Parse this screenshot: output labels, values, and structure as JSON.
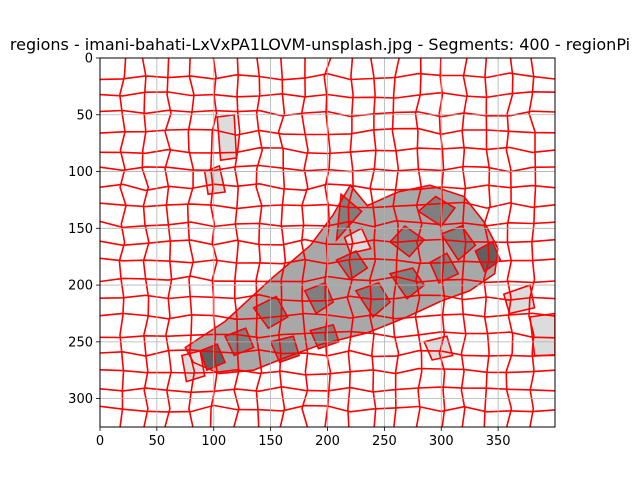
{
  "chart_data": {
    "type": "heatmap",
    "title": "regions - imani-bahati-LxVxPA1LOVM-unsplash.jpg - Segments: 400 - regionPi",
    "xlabel": "",
    "ylabel": "",
    "xlim": [
      0,
      400
    ],
    "ylim": [
      325,
      0
    ],
    "grid": true,
    "segments": 400,
    "boundary_color": "#ff0000",
    "x_ticks": [
      0,
      50,
      100,
      150,
      200,
      250,
      300,
      350
    ],
    "y_ticks": [
      0,
      50,
      100,
      150,
      200,
      250,
      300
    ],
    "colors": {
      "background": "#ffffff",
      "light_region": "#dcdcdc",
      "mid_region": "#a8a8a8",
      "dark_region": "#7f7f7f",
      "darkest_region": "#606060",
      "grid": "#b0b0b0",
      "axes": "#000000"
    },
    "shaded_regions": [
      {
        "shade": "mid",
        "outline": [
          [
            75,
            255
          ],
          [
            110,
            232
          ],
          [
            150,
            195
          ],
          [
            185,
            165
          ],
          [
            205,
            138
          ],
          [
            220,
            112
          ],
          [
            235,
            130
          ],
          [
            262,
            118
          ],
          [
            290,
            112
          ],
          [
            320,
            122
          ],
          [
            338,
            145
          ],
          [
            350,
            168
          ],
          [
            347,
            190
          ],
          [
            325,
            205
          ],
          [
            300,
            214
          ],
          [
            270,
            228
          ],
          [
            235,
            242
          ],
          [
            195,
            252
          ],
          [
            160,
            265
          ],
          [
            135,
            275
          ],
          [
            105,
            278
          ],
          [
            82,
            268
          ]
        ]
      },
      {
        "shade": "dark",
        "outline": [
          [
            212,
            120
          ],
          [
            230,
            135
          ],
          [
            208,
            160
          ]
        ]
      },
      {
        "shade": "dark",
        "outline": [
          [
            255,
            162
          ],
          [
            268,
            148
          ],
          [
            285,
            160
          ],
          [
            272,
            175
          ]
        ]
      },
      {
        "shade": "dark",
        "outline": [
          [
            280,
            135
          ],
          [
            295,
            122
          ],
          [
            312,
            132
          ],
          [
            300,
            148
          ]
        ]
      },
      {
        "shade": "dark",
        "outline": [
          [
            300,
            155
          ],
          [
            318,
            148
          ],
          [
            330,
            165
          ],
          [
            315,
            178
          ]
        ]
      },
      {
        "shade": "dark",
        "outline": [
          [
            208,
            178
          ],
          [
            225,
            170
          ],
          [
            235,
            185
          ],
          [
            220,
            195
          ]
        ]
      },
      {
        "shade": "dark",
        "outline": [
          [
            180,
            205
          ],
          [
            198,
            198
          ],
          [
            205,
            215
          ],
          [
            190,
            225
          ]
        ]
      },
      {
        "shade": "dark",
        "outline": [
          [
            225,
            205
          ],
          [
            245,
            198
          ],
          [
            255,
            215
          ],
          [
            240,
            228
          ]
        ]
      },
      {
        "shade": "dark",
        "outline": [
          [
            255,
            190
          ],
          [
            275,
            185
          ],
          [
            285,
            200
          ],
          [
            270,
            212
          ]
        ]
      },
      {
        "shade": "dark",
        "outline": [
          [
            290,
            180
          ],
          [
            305,
            172
          ],
          [
            315,
            190
          ],
          [
            298,
            198
          ]
        ]
      },
      {
        "shade": "dark",
        "outline": [
          [
            135,
            220
          ],
          [
            155,
            210
          ],
          [
            165,
            228
          ],
          [
            148,
            238
          ]
        ]
      },
      {
        "shade": "dark",
        "outline": [
          [
            185,
            240
          ],
          [
            205,
            235
          ],
          [
            210,
            250
          ],
          [
            192,
            256
          ]
        ]
      },
      {
        "shade": "dark",
        "outline": [
          [
            110,
            245
          ],
          [
            128,
            238
          ],
          [
            135,
            255
          ],
          [
            118,
            262
          ]
        ]
      },
      {
        "shade": "dark",
        "outline": [
          [
            150,
            250
          ],
          [
            170,
            245
          ],
          [
            175,
            262
          ],
          [
            158,
            268
          ]
        ]
      },
      {
        "shade": "darkest",
        "outline": [
          [
            88,
            258
          ],
          [
            103,
            252
          ],
          [
            110,
            268
          ],
          [
            94,
            275
          ]
        ]
      },
      {
        "shade": "darkest",
        "outline": [
          [
            330,
            170
          ],
          [
            345,
            162
          ],
          [
            352,
            178
          ],
          [
            338,
            188
          ]
        ]
      },
      {
        "shade": "light",
        "outline": [
          [
            92,
            100
          ],
          [
            105,
            95
          ],
          [
            110,
            118
          ],
          [
            95,
            120
          ]
        ]
      },
      {
        "shade": "light",
        "outline": [
          [
            103,
            52
          ],
          [
            118,
            50
          ],
          [
            120,
            88
          ],
          [
            106,
            90
          ]
        ]
      },
      {
        "shade": "light",
        "outline": [
          [
            215,
            158
          ],
          [
            230,
            150
          ],
          [
            238,
            168
          ],
          [
            220,
            172
          ]
        ]
      },
      {
        "shade": "light",
        "outline": [
          [
            355,
            208
          ],
          [
            378,
            200
          ],
          [
            382,
            220
          ],
          [
            360,
            225
          ]
        ]
      },
      {
        "shade": "light",
        "outline": [
          [
            378,
            228
          ],
          [
            400,
            225
          ],
          [
            400,
            262
          ],
          [
            382,
            262
          ]
        ]
      },
      {
        "shade": "light",
        "outline": [
          [
            72,
            262
          ],
          [
            88,
            258
          ],
          [
            92,
            280
          ],
          [
            76,
            285
          ]
        ]
      },
      {
        "shade": "light",
        "outline": [
          [
            285,
            250
          ],
          [
            305,
            245
          ],
          [
            310,
            262
          ],
          [
            292,
            266
          ]
        ]
      }
    ]
  }
}
